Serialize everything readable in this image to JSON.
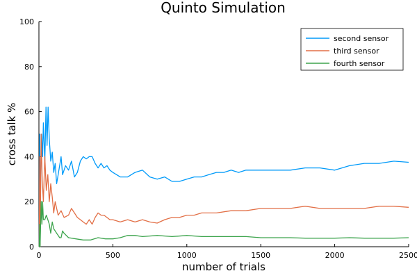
{
  "chart_data": {
    "type": "line",
    "title": "Quinto Simulation",
    "xlabel": "number of trials",
    "ylabel": "cross talk %",
    "xlim": [
      0,
      2500
    ],
    "ylim": [
      0,
      100
    ],
    "xticks": [
      0,
      500,
      1000,
      1500,
      2000,
      2500
    ],
    "yticks": [
      0,
      20,
      40,
      60,
      80,
      100
    ],
    "xtick_labels": [
      "0",
      "500",
      "1000",
      "1500",
      "2000",
      "2500"
    ],
    "ytick_labels": [
      "0",
      "20",
      "40",
      "60",
      "80",
      "100"
    ],
    "grid": false,
    "legend_position": "top-right",
    "series": [
      {
        "name": "second sensor",
        "color": "#009AF9",
        "points": [
          [
            2,
            0
          ],
          [
            5,
            50
          ],
          [
            8,
            0
          ],
          [
            12,
            33
          ],
          [
            18,
            50
          ],
          [
            25,
            40
          ],
          [
            30,
            55
          ],
          [
            40,
            38
          ],
          [
            48,
            62
          ],
          [
            55,
            45
          ],
          [
            62,
            62
          ],
          [
            70,
            48
          ],
          [
            80,
            38
          ],
          [
            90,
            42
          ],
          [
            100,
            33
          ],
          [
            110,
            37
          ],
          [
            120,
            28
          ],
          [
            130,
            32
          ],
          [
            150,
            40
          ],
          [
            160,
            32
          ],
          [
            180,
            36
          ],
          [
            200,
            34
          ],
          [
            220,
            38
          ],
          [
            240,
            31
          ],
          [
            260,
            33
          ],
          [
            280,
            38
          ],
          [
            300,
            40
          ],
          [
            320,
            39
          ],
          [
            340,
            40
          ],
          [
            360,
            40
          ],
          [
            380,
            37
          ],
          [
            400,
            35
          ],
          [
            420,
            37
          ],
          [
            440,
            35
          ],
          [
            460,
            36
          ],
          [
            480,
            34
          ],
          [
            500,
            33
          ],
          [
            550,
            31
          ],
          [
            600,
            31
          ],
          [
            650,
            33
          ],
          [
            700,
            34
          ],
          [
            750,
            31
          ],
          [
            800,
            30
          ],
          [
            850,
            31
          ],
          [
            900,
            29
          ],
          [
            950,
            29
          ],
          [
            1000,
            30
          ],
          [
            1050,
            31
          ],
          [
            1100,
            31
          ],
          [
            1150,
            32
          ],
          [
            1200,
            33
          ],
          [
            1250,
            33
          ],
          [
            1300,
            34
          ],
          [
            1350,
            33
          ],
          [
            1400,
            34
          ],
          [
            1450,
            34
          ],
          [
            1500,
            34
          ],
          [
            1600,
            34
          ],
          [
            1700,
            34
          ],
          [
            1800,
            35
          ],
          [
            1900,
            35
          ],
          [
            2000,
            34
          ],
          [
            2100,
            36
          ],
          [
            2200,
            37
          ],
          [
            2300,
            37
          ],
          [
            2400,
            38
          ],
          [
            2500,
            37.5
          ]
        ]
      },
      {
        "name": "third sensor",
        "color": "#E26F46",
        "points": [
          [
            2,
            0
          ],
          [
            5,
            40
          ],
          [
            8,
            0
          ],
          [
            15,
            50
          ],
          [
            22,
            30
          ],
          [
            30,
            20
          ],
          [
            40,
            40
          ],
          [
            50,
            25
          ],
          [
            60,
            32
          ],
          [
            70,
            20
          ],
          [
            80,
            28
          ],
          [
            90,
            22
          ],
          [
            100,
            15
          ],
          [
            110,
            20
          ],
          [
            120,
            17
          ],
          [
            130,
            14
          ],
          [
            150,
            16
          ],
          [
            170,
            13
          ],
          [
            200,
            14
          ],
          [
            220,
            17
          ],
          [
            240,
            15
          ],
          [
            260,
            13
          ],
          [
            280,
            12
          ],
          [
            300,
            11
          ],
          [
            320,
            10
          ],
          [
            340,
            12
          ],
          [
            360,
            10
          ],
          [
            380,
            13
          ],
          [
            400,
            15
          ],
          [
            420,
            14
          ],
          [
            440,
            14
          ],
          [
            460,
            13
          ],
          [
            480,
            12
          ],
          [
            500,
            12
          ],
          [
            550,
            11
          ],
          [
            600,
            12
          ],
          [
            650,
            11
          ],
          [
            700,
            12
          ],
          [
            750,
            11
          ],
          [
            800,
            10.5
          ],
          [
            850,
            12
          ],
          [
            900,
            13
          ],
          [
            950,
            13
          ],
          [
            1000,
            14
          ],
          [
            1050,
            14
          ],
          [
            1100,
            15
          ],
          [
            1150,
            15
          ],
          [
            1200,
            15
          ],
          [
            1300,
            16
          ],
          [
            1400,
            16
          ],
          [
            1500,
            17
          ],
          [
            1600,
            17
          ],
          [
            1700,
            17
          ],
          [
            1800,
            18
          ],
          [
            1900,
            17
          ],
          [
            2000,
            17
          ],
          [
            2100,
            17
          ],
          [
            2200,
            17
          ],
          [
            2300,
            18
          ],
          [
            2400,
            18
          ],
          [
            2500,
            17.5
          ]
        ]
      },
      {
        "name": "fourth sensor",
        "color": "#3DA44D",
        "points": [
          [
            2,
            0
          ],
          [
            5,
            10
          ],
          [
            8,
            0
          ],
          [
            15,
            20
          ],
          [
            20,
            10
          ],
          [
            25,
            20
          ],
          [
            30,
            12
          ],
          [
            40,
            12
          ],
          [
            50,
            14
          ],
          [
            60,
            12
          ],
          [
            70,
            10
          ],
          [
            80,
            6
          ],
          [
            90,
            11
          ],
          [
            100,
            8
          ],
          [
            110,
            7
          ],
          [
            120,
            6
          ],
          [
            130,
            5
          ],
          [
            140,
            4
          ],
          [
            150,
            4
          ],
          [
            160,
            7
          ],
          [
            170,
            6
          ],
          [
            200,
            4
          ],
          [
            250,
            3.5
          ],
          [
            300,
            3
          ],
          [
            350,
            3
          ],
          [
            400,
            4
          ],
          [
            450,
            3.5
          ],
          [
            500,
            3.5
          ],
          [
            550,
            4
          ],
          [
            600,
            5
          ],
          [
            650,
            5
          ],
          [
            700,
            4.5
          ],
          [
            800,
            5
          ],
          [
            900,
            4.5
          ],
          [
            1000,
            5
          ],
          [
            1100,
            4.5
          ],
          [
            1200,
            4.5
          ],
          [
            1300,
            4.5
          ],
          [
            1400,
            4.5
          ],
          [
            1500,
            4
          ],
          [
            1600,
            4
          ],
          [
            1700,
            4
          ],
          [
            1800,
            3.8
          ],
          [
            1900,
            3.8
          ],
          [
            2000,
            3.8
          ],
          [
            2100,
            4
          ],
          [
            2200,
            3.8
          ],
          [
            2300,
            3.8
          ],
          [
            2400,
            3.8
          ],
          [
            2500,
            4
          ]
        ]
      }
    ]
  }
}
